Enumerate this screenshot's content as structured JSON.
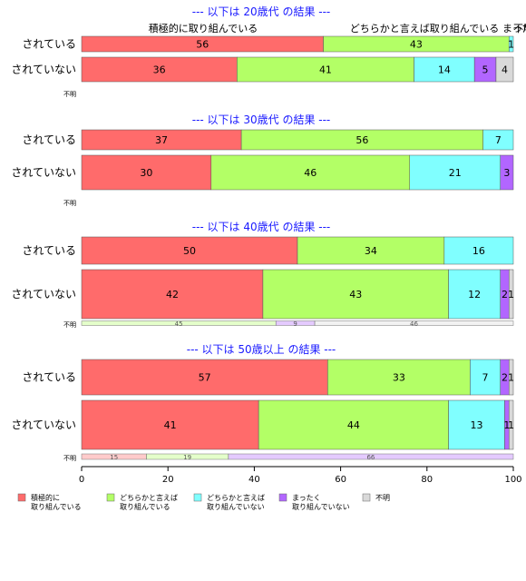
{
  "chart_data": {
    "type": "bar",
    "orientation": "horizontal",
    "stacked": true,
    "xlim": [
      0,
      100
    ],
    "x_ticks": [
      "0",
      "20",
      "40",
      "60",
      "80",
      "100"
    ],
    "categories_legend": [
      "積極的に\n取り組んでいる",
      "どちらかと言えば\n取り組んでいる",
      "どちらかと言えば\n取り組んでいない",
      "まったく\n取り組んでいない",
      "不明"
    ],
    "colors": [
      "#ff6b6b",
      "#b3ff66",
      "#80ffff",
      "#b266ff",
      "#d9d9d9"
    ],
    "top_annotations": [
      "積極的に取り組んでいる",
      "どちらかと言えば取り組んでいる",
      "まったく取り",
      "不明"
    ],
    "panels": [
      {
        "title": "--- 以下は 20歳代 の結果 ---",
        "rows": [
          {
            "label": "されている",
            "values": [
              56,
              43,
              1,
              0,
              0
            ],
            "value_labels": [
              "56",
              "43",
              "1",
              "",
              ""
            ]
          },
          {
            "label": "されていない",
            "values": [
              36,
              41,
              14,
              5,
              4
            ],
            "value_labels": [
              "36",
              "41",
              "14",
              "5",
              "4"
            ]
          }
        ],
        "unknown_row": {
          "label": "不明",
          "values": [],
          "value_labels": []
        }
      },
      {
        "title": "--- 以下は 30歳代 の結果 ---",
        "rows": [
          {
            "label": "されている",
            "values": [
              37,
              56,
              7,
              0,
              0
            ],
            "value_labels": [
              "37",
              "56",
              "7",
              "",
              ""
            ]
          },
          {
            "label": "されていない",
            "values": [
              30,
              46,
              21,
              3,
              0
            ],
            "value_labels": [
              "30",
              "46",
              "21",
              "3",
              ""
            ]
          }
        ],
        "unknown_row": {
          "label": "不明",
          "values": [],
          "value_labels": []
        }
      },
      {
        "title": "--- 以下は 40歳代 の結果 ---",
        "rows": [
          {
            "label": "されている",
            "values": [
              50,
              34,
              16,
              0,
              0
            ],
            "value_labels": [
              "50",
              "34",
              "16",
              "",
              ""
            ]
          },
          {
            "label": "されていない",
            "values": [
              42,
              43,
              12,
              2,
              1
            ],
            "value_labels": [
              "42",
              "43",
              "12",
              "2",
              "1"
            ]
          }
        ],
        "unknown_row": {
          "label": "不明",
          "values": [
            0,
            45,
            0,
            9,
            46
          ],
          "value_labels": [
            "",
            "45",
            "",
            "9",
            "46"
          ]
        }
      },
      {
        "title": "--- 以下は 50歳以上 の結果 ---",
        "rows": [
          {
            "label": "されている",
            "values": [
              57,
              33,
              7,
              2,
              1
            ],
            "value_labels": [
              "57",
              "33",
              "7",
              "2",
              "1"
            ]
          },
          {
            "label": "されていない",
            "values": [
              41,
              44,
              13,
              1,
              1
            ],
            "value_labels": [
              "41",
              "44",
              "13",
              "1",
              "1"
            ]
          }
        ],
        "unknown_row": {
          "label": "不明",
          "values": [
            15,
            19,
            0,
            66,
            0
          ],
          "value_labels": [
            "15",
            "19",
            "",
            "66",
            ""
          ]
        }
      }
    ]
  }
}
